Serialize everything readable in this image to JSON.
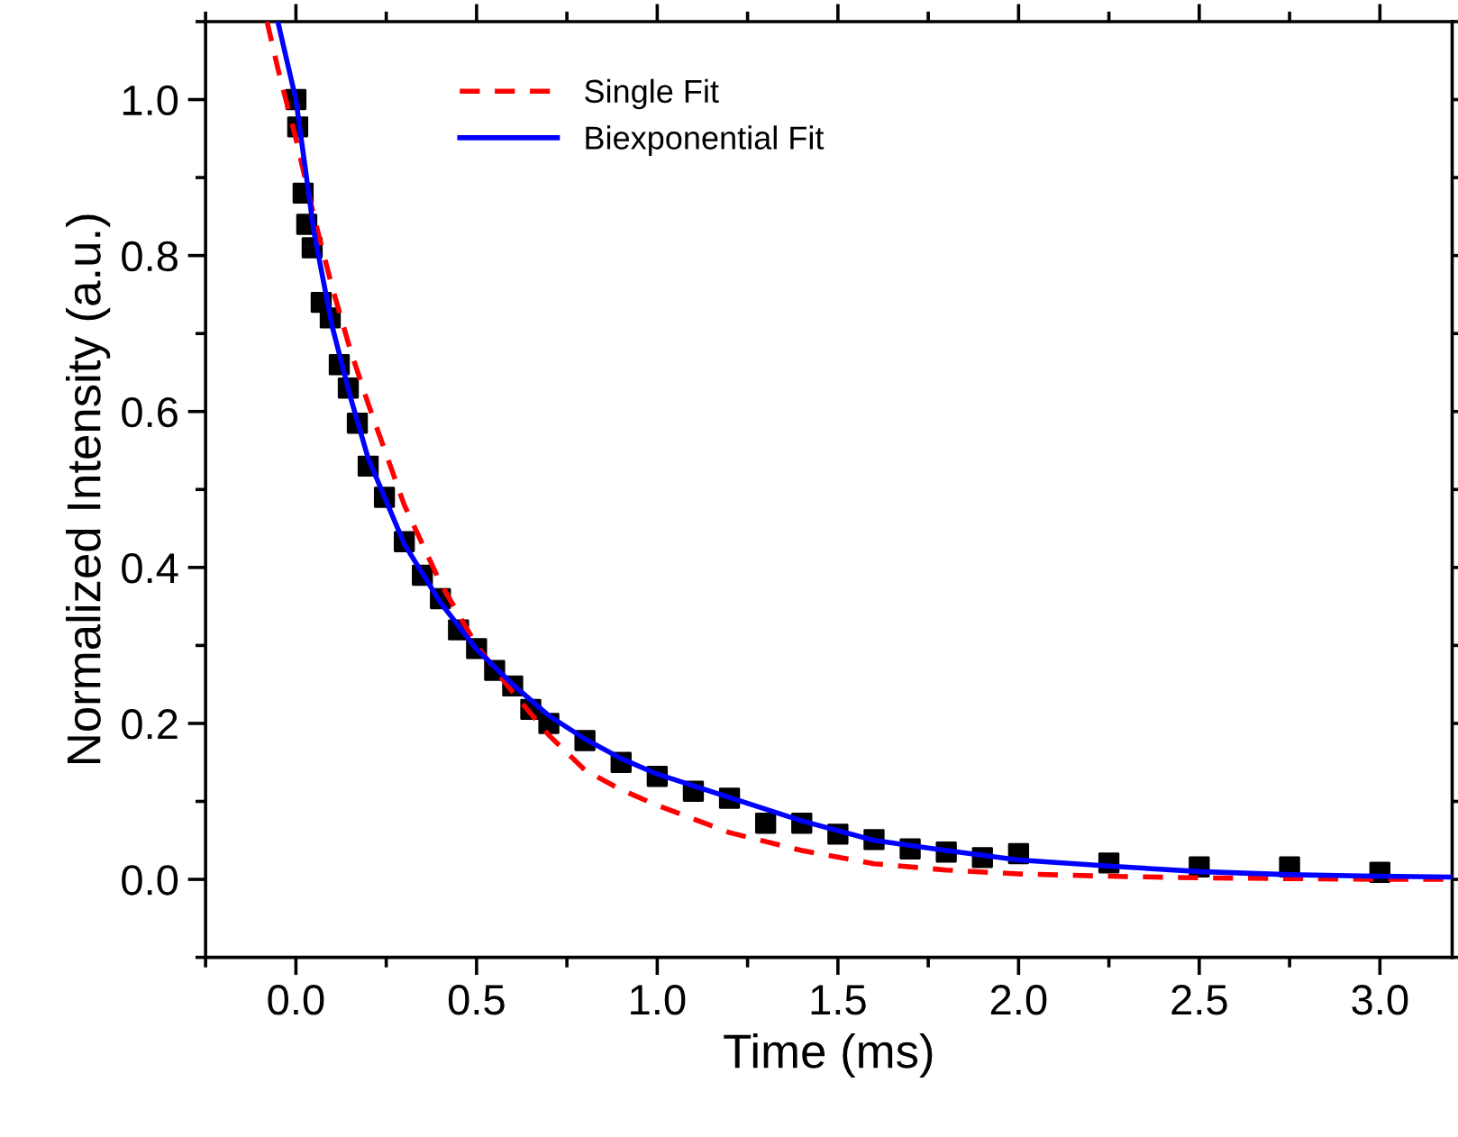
{
  "chart_data": {
    "type": "scatter",
    "xlabel": "Time (ms)",
    "ylabel": "Normalized Intensity (a.u.)",
    "xlim": [
      -0.25,
      3.2
    ],
    "ylim": [
      -0.1,
      1.1
    ],
    "xticks": [
      {
        "value": 0,
        "label": "0.0"
      },
      0.5,
      {
        "value": 1,
        "label": "1.0"
      },
      1.5,
      {
        "value": 2,
        "label": "2.0"
      },
      2.5,
      {
        "value": 3,
        "label": "3.0"
      }
    ],
    "yticks": [
      {
        "value": 0,
        "label": "0.0"
      },
      0.2,
      0.4,
      0.6,
      0.8,
      {
        "value": 1,
        "label": "1.0"
      }
    ],
    "grid": false,
    "legend": "top",
    "series": [
      {
        "color": "#000000",
        "marker": "square",
        "x": [
          0,
          0.005,
          0.02,
          0.03,
          0.045,
          0.07,
          0.095,
          0.12,
          0.145,
          0.17,
          0.2,
          0.245,
          0.3,
          0.35,
          0.4,
          0.45,
          0.5,
          0.55,
          0.6,
          0.65,
          0.7,
          0.8,
          0.9,
          1.0,
          1.1,
          1.2,
          1.3,
          1.4,
          1.5,
          1.6,
          1.7,
          1.8,
          1.9,
          2.0,
          2.25,
          2.5,
          2.75,
          3.0
        ],
        "values": [
          1.0,
          0.965,
          0.88,
          0.84,
          0.81,
          0.74,
          0.72,
          0.66,
          0.63,
          0.585,
          0.53,
          0.49,
          0.433,
          0.39,
          0.36,
          0.32,
          0.296,
          0.268,
          0.248,
          0.218,
          0.2,
          0.178,
          0.15,
          0.132,
          0.113,
          0.104,
          0.072,
          0.072,
          0.058,
          0.051,
          0.039,
          0.035,
          0.028,
          0.033,
          0.021,
          0.016,
          0.016,
          0.009
        ]
      },
      {
        "type": "line",
        "name": "Single Fit",
        "color": "#ff0000",
        "line_style": "dashed",
        "x": [
          -0.08,
          -0.05,
          0,
          0.05,
          0.1,
          0.15,
          0.2,
          0.3,
          0.4,
          0.5,
          0.6,
          0.7,
          0.8,
          0.9,
          1.0,
          1.2,
          1.4,
          1.6,
          1.8,
          2.0,
          2.25,
          2.5,
          2.75,
          3.0,
          3.2
        ],
        "values": [
          1.1,
          1.04,
          0.95,
          0.85,
          0.76,
          0.68,
          0.61,
          0.48,
          0.38,
          0.3,
          0.24,
          0.185,
          0.14,
          0.115,
          0.095,
          0.06,
          0.037,
          0.02,
          0.012,
          0.007,
          0.004,
          0.002,
          0.001,
          0.0,
          0.0
        ]
      },
      {
        "type": "line",
        "name": "Biexponential Fit",
        "color": "#0000ff",
        "line_style": "solid",
        "x": [
          -0.05,
          0,
          0.05,
          0.1,
          0.15,
          0.2,
          0.3,
          0.4,
          0.5,
          0.6,
          0.7,
          0.8,
          0.9,
          1.0,
          1.2,
          1.4,
          1.6,
          1.8,
          2.0,
          2.25,
          2.5,
          2.75,
          3.0,
          3.2
        ],
        "values": [
          1.1,
          1.0,
          0.83,
          0.71,
          0.62,
          0.54,
          0.43,
          0.355,
          0.295,
          0.25,
          0.21,
          0.18,
          0.155,
          0.135,
          0.105,
          0.075,
          0.05,
          0.037,
          0.025,
          0.017,
          0.01,
          0.006,
          0.004,
          0.003
        ]
      }
    ]
  }
}
